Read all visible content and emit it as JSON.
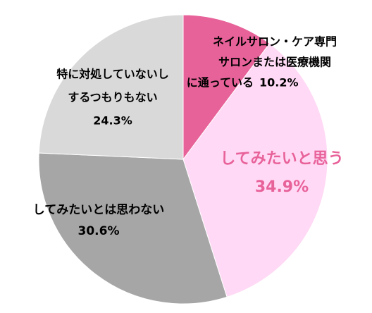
{
  "chart_data": {
    "type": "pie",
    "categories": [
      [
        "ネイルサロン・ケア専門",
        "サロンまたは医療機関",
        "に通っている"
      ],
      [
        "してみたいと思う"
      ],
      [
        "してみたいとは思わない"
      ],
      [
        "特に対処していないし",
        "するつもりもない"
      ]
    ],
    "values": [
      10.2,
      34.9,
      30.6,
      24.3
    ],
    "value_labels": [
      "10.2%",
      "34.9%",
      "30.6%",
      "24.3%"
    ],
    "colors": [
      "#e8629a",
      "#ffd9f5",
      "#a6a6a6",
      "#d9d9d9"
    ],
    "label_colors": [
      "#000000",
      "#e8629a",
      "#000000",
      "#000000"
    ]
  }
}
